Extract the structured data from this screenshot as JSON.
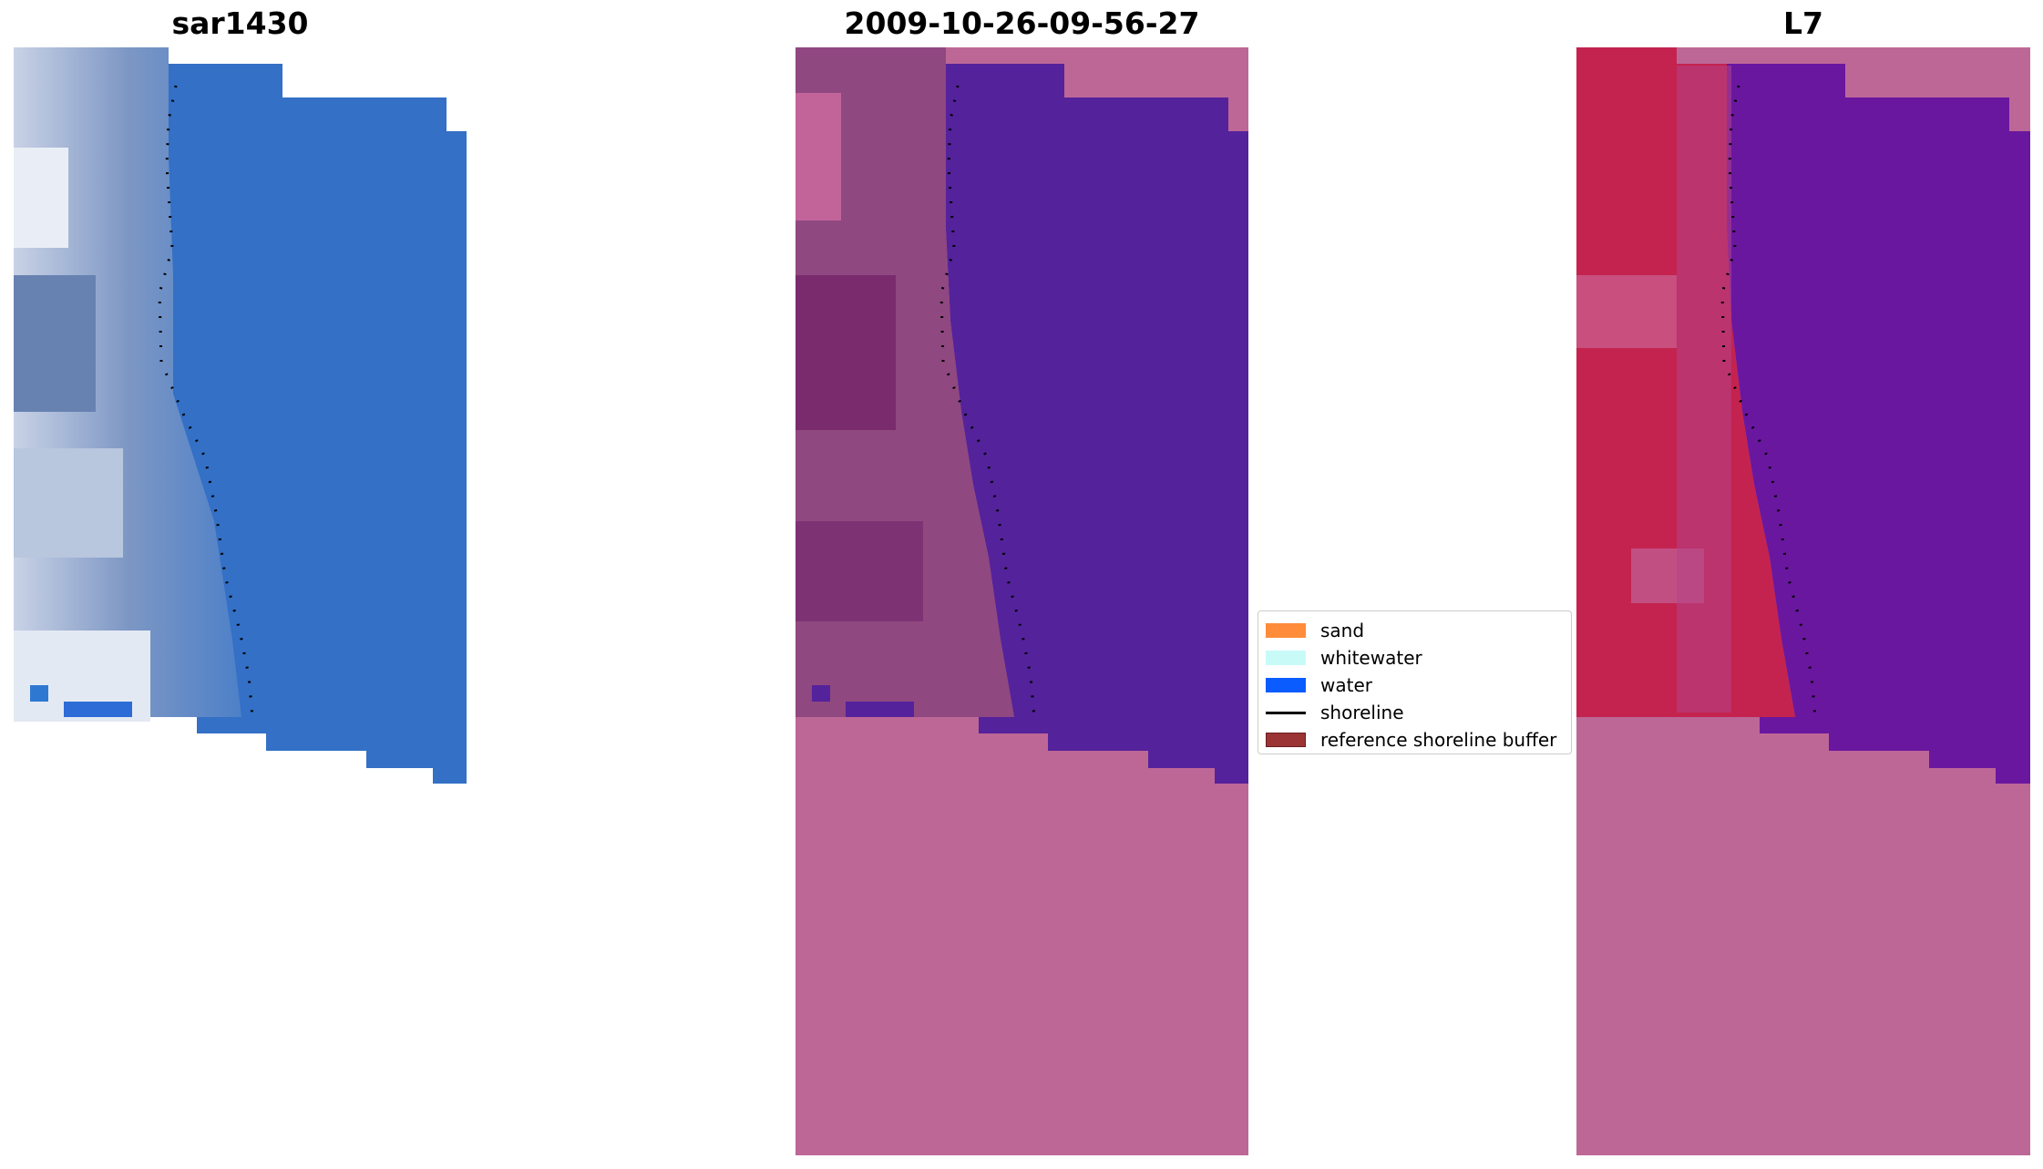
{
  "panels": [
    {
      "id": "rgb",
      "title": "sar1430"
    },
    {
      "id": "classified",
      "title": "2009-10-26-09-56-27"
    },
    {
      "id": "index",
      "title": "L7"
    }
  ],
  "legend": {
    "items": [
      {
        "label": "sand",
        "color": "#ff8c3a",
        "kind": "patch"
      },
      {
        "label": "whitewater",
        "color": "#c8fbf8",
        "kind": "patch"
      },
      {
        "label": "water",
        "color": "#0a5cff",
        "kind": "patch"
      },
      {
        "label": "shoreline",
        "color": "#000000",
        "kind": "line"
      },
      {
        "label": "reference shoreline buffer",
        "color": "#9b3535",
        "kind": "patch"
      }
    ]
  },
  "colors": {
    "nodata": "#bd6797",
    "water_classified": "#54229b",
    "sand_classified": "#8f4880",
    "water_index": "#6a17a0",
    "land_index": "#c4234f",
    "water_rgb": "#2f78d2",
    "land_rgb": "#7f95bd",
    "shoreline": "#000000"
  }
}
